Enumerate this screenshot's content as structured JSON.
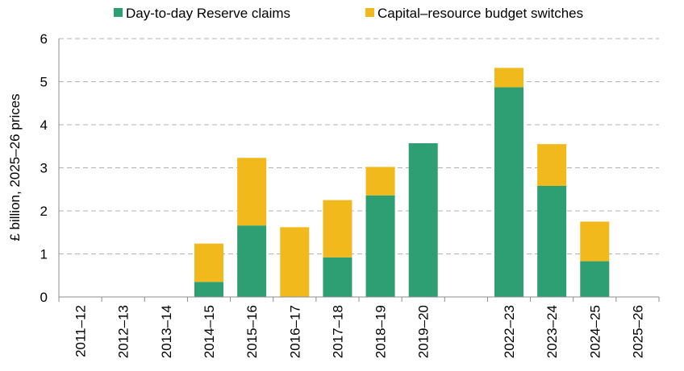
{
  "chart_data": {
    "type": "bar",
    "stacked": true,
    "categories": [
      "2011–12",
      "2012–13",
      "2013–14",
      "2014–15",
      "2015–16",
      "2016–17",
      "2017–18",
      "2018–19",
      "2019–20",
      "",
      "2022–23",
      "2023–24",
      "2024–25",
      "2025–26"
    ],
    "series": [
      {
        "name": "Day-to-day Reserve claims",
        "color": "#2e9e73",
        "values": [
          0,
          0,
          0,
          0.35,
          1.66,
          0,
          0.92,
          2.36,
          3.57,
          0,
          4.87,
          2.58,
          0.83,
          0
        ]
      },
      {
        "name": "Capital–resource budget switches",
        "color": "#f2b91c",
        "values": [
          0,
          0,
          0,
          0.89,
          1.57,
          1.62,
          1.33,
          0.66,
          0,
          0,
          0.45,
          0.97,
          0.92,
          0
        ]
      }
    ],
    "ylabel": "£ billion, 2025–26 prices",
    "ylim": [
      0,
      6
    ],
    "yticks": [
      0,
      1,
      2,
      3,
      4,
      5,
      6
    ],
    "grid": true,
    "legend": "top"
  }
}
